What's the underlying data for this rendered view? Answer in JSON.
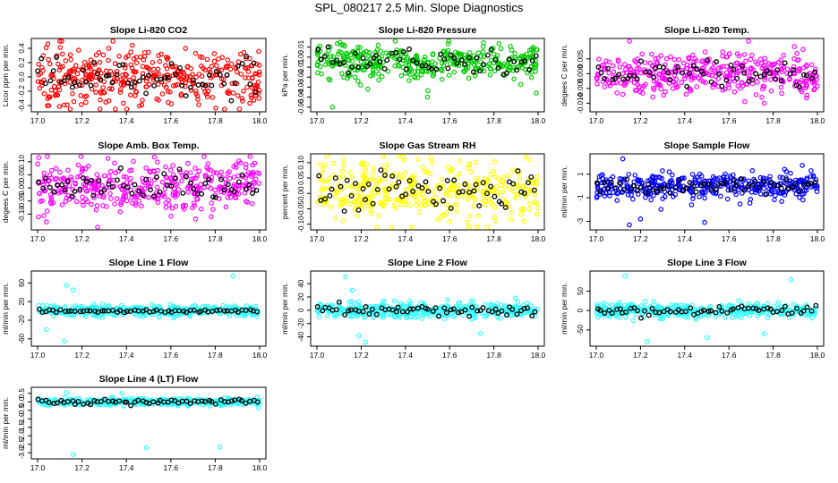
{
  "figure_title": "SPL_080217  2.5 Min. Slope Diagnostics",
  "chart_data": [
    {
      "type": "scatter",
      "title": "Slope Li-820 CO2",
      "ylabel": "Licor ppm per min.",
      "color": "#ff0000",
      "xlim": [
        17.0,
        18.0
      ],
      "ylim": [
        -0.45,
        0.5
      ],
      "yticks": [
        "-0.4",
        "-0.2",
        "0.0",
        "0.2",
        "0.4"
      ],
      "ytick_values": [
        -0.4,
        -0.2,
        0.0,
        0.2,
        0.4
      ],
      "xticks": [
        "17.0",
        "17.2",
        "17.4",
        "17.6",
        "17.8",
        "18.0"
      ],
      "xtick_values": [
        17.0,
        17.2,
        17.4,
        17.6,
        17.8,
        18.0
      ],
      "center": 0.0,
      "spread": 0.19,
      "black_spread": 0.12,
      "outliers": [
        [
          17.1,
          0.5
        ],
        [
          17.35,
          -0.45
        ],
        [
          17.05,
          -0.4
        ]
      ]
    },
    {
      "type": "scatter",
      "title": "Slope Li-820 Pressure",
      "ylabel": "kPa per min.",
      "color": "#00cc00",
      "xlim": [
        17.0,
        18.0
      ],
      "ylim": [
        -0.052,
        0.016
      ],
      "yticks": [
        "-0.05",
        "-0.04",
        "-0.03",
        "-0.02",
        "-0.01",
        "0.00",
        "0.01"
      ],
      "ytick_values": [
        -0.05,
        -0.04,
        -0.03,
        -0.02,
        -0.01,
        0.0,
        0.01
      ],
      "xticks": [
        "17.0",
        "17.2",
        "17.4",
        "17.6",
        "17.8",
        "18.0"
      ],
      "xtick_values": [
        17.0,
        17.2,
        17.4,
        17.6,
        17.8,
        18.0
      ],
      "center": -0.004,
      "spread": 0.009,
      "black_spread": 0.006,
      "outliers": [
        [
          17.07,
          -0.05
        ],
        [
          17.5,
          -0.04
        ],
        [
          17.23,
          -0.032
        ]
      ]
    },
    {
      "type": "scatter",
      "title": "Slope Li-820 Temp.",
      "ylabel": "degees C per min.",
      "color": "#ff00ff",
      "xlim": [
        17.0,
        18.0
      ],
      "ylim": [
        -0.012,
        0.011
      ],
      "yticks": [
        "-0.010",
        "-0.005",
        "0.000",
        "0.005"
      ],
      "ytick_values": [
        -0.01,
        -0.005,
        0.0,
        0.005
      ],
      "xticks": [
        "17.0",
        "17.2",
        "17.4",
        "17.6",
        "17.8",
        "18.0"
      ],
      "xtick_values": [
        17.0,
        17.2,
        17.4,
        17.6,
        17.8,
        18.0
      ],
      "center": 0.0,
      "spread": 0.0035,
      "black_spread": 0.002,
      "outliers": [
        [
          17.15,
          0.011
        ],
        [
          17.76,
          -0.01
        ],
        [
          17.12,
          -0.007
        ]
      ]
    },
    {
      "type": "scatter",
      "title": "Slope Amb. Box Temp.",
      "ylabel": "degees C per min.",
      "color": "#ff00ff",
      "xlim": [
        17.0,
        18.0
      ],
      "ylim": [
        -0.15,
        0.12
      ],
      "yticks": [
        "-0.10",
        "-0.05",
        "0.00",
        "0.05",
        "0.10"
      ],
      "ytick_values": [
        -0.1,
        -0.05,
        0.0,
        0.05,
        0.1
      ],
      "xticks": [
        "17.0",
        "17.2",
        "17.4",
        "17.6",
        "17.8",
        "18.0"
      ],
      "xtick_values": [
        17.0,
        17.2,
        17.4,
        17.6,
        17.8,
        18.0
      ],
      "center": 0.01,
      "spread": 0.05,
      "black_spread": 0.03,
      "outliers": [
        [
          17.27,
          -0.15
        ],
        [
          17.75,
          0.12
        ],
        [
          17.04,
          -0.13
        ]
      ]
    },
    {
      "type": "scatter",
      "title": "Slope Gas Stream RH",
      "ylabel": "percent per min.",
      "color": "#ffff00",
      "xlim": [
        17.0,
        18.0
      ],
      "ylim": [
        -0.11,
        0.12
      ],
      "yticks": [
        "-0.10",
        "-0.05",
        "0.00",
        "0.05",
        "0.10"
      ],
      "ytick_values": [
        -0.1,
        -0.05,
        0.0,
        0.05,
        0.1
      ],
      "xticks": [
        "17.0",
        "17.2",
        "17.4",
        "17.6",
        "17.8",
        "18.0"
      ],
      "xtick_values": [
        17.0,
        17.2,
        17.4,
        17.6,
        17.8,
        18.0
      ],
      "center": 0.01,
      "spread": 0.045,
      "black_spread": 0.03,
      "outliers": [
        [
          17.77,
          -0.11
        ],
        [
          17.12,
          -0.09
        ],
        [
          17.96,
          0.11
        ]
      ]
    },
    {
      "type": "scatter",
      "title": "Slope Sample Flow",
      "ylabel": "ml/min per min.",
      "color": "#0000ff",
      "xlim": [
        17.0,
        18.0
      ],
      "ylim": [
        -3.5,
        2.5
      ],
      "yticks": [
        "-3",
        "-1",
        "1"
      ],
      "ytick_values": [
        -3,
        -1,
        1
      ],
      "xticks": [
        "17.0",
        "17.2",
        "17.4",
        "17.6",
        "17.8",
        "18.0"
      ],
      "xtick_values": [
        17.0,
        17.2,
        17.4,
        17.6,
        17.8,
        18.0
      ],
      "center": 0.0,
      "spread": 0.55,
      "black_spread": 0.3,
      "outliers": [
        [
          17.15,
          -3.3
        ],
        [
          17.12,
          2.3
        ],
        [
          17.49,
          -3.1
        ],
        [
          17.2,
          -2.8
        ]
      ]
    },
    {
      "type": "scatter",
      "title": "Slope Line 1 Flow",
      "ylabel": "ml/min per min.",
      "color": "#33ffff",
      "xlim": [
        17.0,
        18.0
      ],
      "ylim": [
        -70,
        80
      ],
      "yticks": [
        "-60",
        "-20",
        "20",
        "60"
      ],
      "ytick_values": [
        -60,
        -20,
        20,
        60
      ],
      "xticks": [
        "17.0",
        "17.2",
        "17.4",
        "17.6",
        "17.8",
        "18.0"
      ],
      "xtick_values": [
        17.0,
        17.2,
        17.4,
        17.6,
        17.8,
        18.0
      ],
      "center": 0.0,
      "spread": 6,
      "black_spread": 1.5,
      "outliers": [
        [
          17.13,
          55
        ],
        [
          17.16,
          45
        ],
        [
          17.88,
          75
        ],
        [
          17.12,
          -65
        ],
        [
          17.04,
          -40
        ]
      ]
    },
    {
      "type": "scatter",
      "title": "Slope Line 2 Flow",
      "ylabel": "ml/min per min.",
      "color": "#33ffff",
      "xlim": [
        17.0,
        18.0
      ],
      "ylim": [
        -50,
        55
      ],
      "yticks": [
        "-40",
        "-20",
        "0",
        "20",
        "40"
      ],
      "ytick_values": [
        -40,
        -20,
        0,
        20,
        40
      ],
      "xticks": [
        "17.0",
        "17.2",
        "17.4",
        "17.6",
        "17.8",
        "18.0"
      ],
      "xtick_values": [
        17.0,
        17.2,
        17.4,
        17.6,
        17.8,
        18.0
      ],
      "center": 0.0,
      "spread": 6,
      "black_spread": 4,
      "outliers": [
        [
          17.13,
          50
        ],
        [
          17.22,
          -48
        ],
        [
          17.19,
          -38
        ],
        [
          17.74,
          -35
        ],
        [
          17.16,
          30
        ]
      ]
    },
    {
      "type": "scatter",
      "title": "Slope Line 3 Flow",
      "ylabel": "ml/min per min.",
      "color": "#33ffff",
      "xlim": [
        17.0,
        18.0
      ],
      "ylim": [
        -85,
        95
      ],
      "yticks": [
        "-50",
        "0",
        "50"
      ],
      "ytick_values": [
        -50,
        0,
        50
      ],
      "xticks": [
        "17.0",
        "17.2",
        "17.4",
        "17.6",
        "17.8",
        "18.0"
      ],
      "xtick_values": [
        17.0,
        17.2,
        17.4,
        17.6,
        17.8,
        18.0
      ],
      "center": 0.0,
      "spread": 9,
      "black_spread": 6,
      "outliers": [
        [
          17.13,
          90
        ],
        [
          17.23,
          -80
        ],
        [
          17.88,
          80
        ],
        [
          17.76,
          -60
        ],
        [
          17.5,
          -70
        ]
      ]
    },
    {
      "type": "scatter",
      "title": "Slope Line 4 (LT) Flow",
      "ylabel": "ml/min per min.",
      "color": "#33ffff",
      "xlim": [
        17.0,
        18.0
      ],
      "ylim": [
        -3.2,
        0.7
      ],
      "yticks": [
        "-3.0",
        "-2.5",
        "-2.0",
        "-1.5",
        "-1.0",
        "-0.5",
        "0.0",
        "0.5"
      ],
      "ytick_values": [
        -3.0,
        -2.5,
        -2.0,
        -1.5,
        -1.0,
        -0.5,
        0.0,
        0.5
      ],
      "xticks": [
        "17.0",
        "17.2",
        "17.4",
        "17.6",
        "17.8",
        "18.0"
      ],
      "xtick_values": [
        17.0,
        17.2,
        17.4,
        17.6,
        17.8,
        18.0
      ],
      "center": 0.0,
      "spread": 0.1,
      "black_spread": 0.08,
      "outliers": [
        [
          17.16,
          -3.1
        ],
        [
          17.49,
          -2.7
        ],
        [
          17.82,
          -2.65
        ],
        [
          17.13,
          0.55
        ],
        [
          17.38,
          0.5
        ]
      ]
    }
  ]
}
